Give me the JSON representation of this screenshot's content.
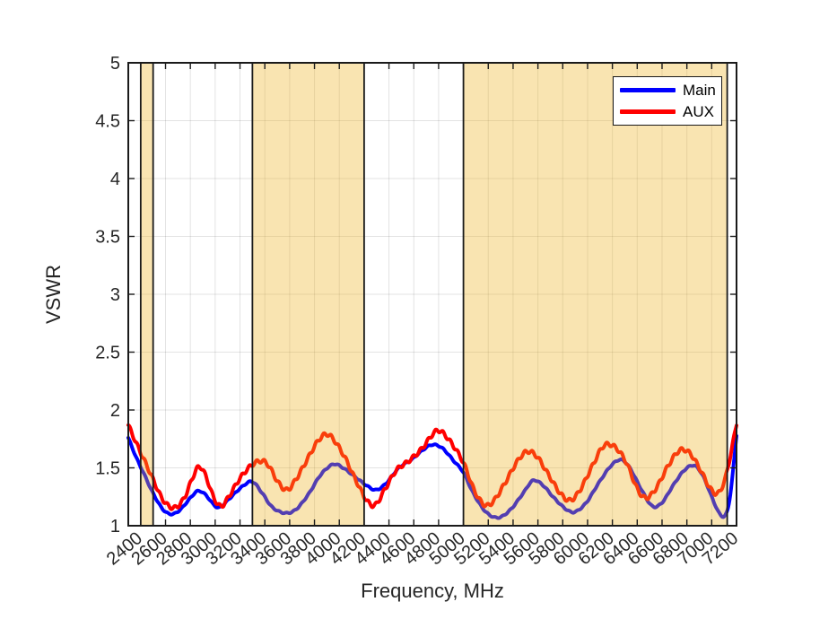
{
  "figure": {
    "background": "#ffffff"
  },
  "chart_data": {
    "type": "line",
    "title": "",
    "xlabel": "Frequency, MHz",
    "ylabel": "VSWR",
    "xlim": [
      2300,
      7200
    ],
    "ylim": [
      1,
      5
    ],
    "grid": true,
    "grid_color": "rgba(38,38,38,0.13)",
    "axis_color": "#1a1a1a",
    "tick_label_color": "#262626",
    "x_ticks": [
      2400,
      2600,
      2800,
      3000,
      3200,
      3400,
      3600,
      3800,
      4000,
      4200,
      4400,
      4600,
      4800,
      5000,
      5200,
      5400,
      5600,
      5800,
      6000,
      6200,
      6400,
      6600,
      6800,
      7000,
      7200
    ],
    "x_tick_labels": [
      "2400",
      "2600",
      "2800",
      "3000",
      "3200",
      "3400",
      "3600",
      "3800",
      "4000",
      "4200",
      "4400",
      "4600",
      "4800",
      "5000",
      "5200",
      "5400",
      "5600",
      "5800",
      "6000",
      "6200",
      "6400",
      "6600",
      "6800",
      "7000",
      "7200"
    ],
    "y_ticks": [
      1,
      1.5,
      2,
      2.5,
      3,
      3.5,
      4,
      4.5,
      5
    ],
    "y_tick_labels": [
      "1",
      "1.5",
      "2",
      "2.5",
      "3",
      "3.5",
      "4",
      "4.5",
      "5"
    ],
    "bands": {
      "color": "#EDB120",
      "alpha": 0.35,
      "edge_color": "#1a1a1a",
      "ranges": [
        [
          2400,
          2500
        ],
        [
          3300,
          4200
        ],
        [
          5000,
          7125
        ]
      ]
    },
    "legend": {
      "position": "top-right",
      "entries": [
        "Main",
        "AUX"
      ]
    },
    "series": [
      {
        "name": "Main",
        "color": "#0000FF",
        "line_width": 4,
        "ripple_amp": 0.005,
        "ripple_period": 60,
        "points": [
          [
            2300,
            1.76
          ],
          [
            2360,
            1.6
          ],
          [
            2430,
            1.44
          ],
          [
            2500,
            1.28
          ],
          [
            2580,
            1.14
          ],
          [
            2650,
            1.1
          ],
          [
            2720,
            1.14
          ],
          [
            2800,
            1.24
          ],
          [
            2860,
            1.3
          ],
          [
            2920,
            1.27
          ],
          [
            2990,
            1.18
          ],
          [
            3040,
            1.16
          ],
          [
            3120,
            1.24
          ],
          [
            3220,
            1.34
          ],
          [
            3300,
            1.38
          ],
          [
            3380,
            1.28
          ],
          [
            3460,
            1.16
          ],
          [
            3560,
            1.11
          ],
          [
            3650,
            1.14
          ],
          [
            3750,
            1.27
          ],
          [
            3850,
            1.44
          ],
          [
            3950,
            1.53
          ],
          [
            4030,
            1.5
          ],
          [
            4130,
            1.42
          ],
          [
            4230,
            1.34
          ],
          [
            4300,
            1.31
          ],
          [
            4380,
            1.37
          ],
          [
            4480,
            1.5
          ],
          [
            4580,
            1.57
          ],
          [
            4680,
            1.66
          ],
          [
            4750,
            1.7
          ],
          [
            4830,
            1.67
          ],
          [
            4930,
            1.55
          ],
          [
            5000,
            1.46
          ],
          [
            5080,
            1.28
          ],
          [
            5180,
            1.12
          ],
          [
            5280,
            1.07
          ],
          [
            5380,
            1.14
          ],
          [
            5480,
            1.28
          ],
          [
            5560,
            1.39
          ],
          [
            5640,
            1.35
          ],
          [
            5730,
            1.24
          ],
          [
            5830,
            1.14
          ],
          [
            5900,
            1.12
          ],
          [
            5990,
            1.2
          ],
          [
            6090,
            1.37
          ],
          [
            6190,
            1.52
          ],
          [
            6270,
            1.57
          ],
          [
            6340,
            1.5
          ],
          [
            6430,
            1.32
          ],
          [
            6520,
            1.17
          ],
          [
            6600,
            1.2
          ],
          [
            6690,
            1.35
          ],
          [
            6780,
            1.48
          ],
          [
            6860,
            1.52
          ],
          [
            6930,
            1.43
          ],
          [
            7000,
            1.25
          ],
          [
            7060,
            1.11
          ],
          [
            7110,
            1.09
          ],
          [
            7150,
            1.27
          ],
          [
            7200,
            1.78
          ]
        ]
      },
      {
        "name": "AUX",
        "color": "#FF0000",
        "line_width": 4,
        "ripple_amp": 0.016,
        "ripple_period": 60,
        "points": [
          [
            2300,
            1.87
          ],
          [
            2370,
            1.7
          ],
          [
            2440,
            1.54
          ],
          [
            2500,
            1.4
          ],
          [
            2570,
            1.24
          ],
          [
            2640,
            1.16
          ],
          [
            2700,
            1.17
          ],
          [
            2760,
            1.26
          ],
          [
            2820,
            1.42
          ],
          [
            2870,
            1.51
          ],
          [
            2920,
            1.44
          ],
          [
            2990,
            1.24
          ],
          [
            3050,
            1.17
          ],
          [
            3120,
            1.27
          ],
          [
            3200,
            1.41
          ],
          [
            3290,
            1.52
          ],
          [
            3370,
            1.56
          ],
          [
            3430,
            1.52
          ],
          [
            3510,
            1.37
          ],
          [
            3580,
            1.31
          ],
          [
            3650,
            1.4
          ],
          [
            3730,
            1.55
          ],
          [
            3820,
            1.72
          ],
          [
            3890,
            1.79
          ],
          [
            3950,
            1.75
          ],
          [
            4040,
            1.6
          ],
          [
            4130,
            1.4
          ],
          [
            4220,
            1.22
          ],
          [
            4290,
            1.18
          ],
          [
            4370,
            1.32
          ],
          [
            4460,
            1.48
          ],
          [
            4560,
            1.56
          ],
          [
            4660,
            1.66
          ],
          [
            4760,
            1.8
          ],
          [
            4810,
            1.82
          ],
          [
            4870,
            1.76
          ],
          [
            4950,
            1.64
          ],
          [
            5010,
            1.52
          ],
          [
            5090,
            1.3
          ],
          [
            5170,
            1.18
          ],
          [
            5240,
            1.21
          ],
          [
            5330,
            1.36
          ],
          [
            5430,
            1.55
          ],
          [
            5510,
            1.64
          ],
          [
            5590,
            1.6
          ],
          [
            5680,
            1.45
          ],
          [
            5780,
            1.28
          ],
          [
            5860,
            1.22
          ],
          [
            5940,
            1.31
          ],
          [
            6040,
            1.52
          ],
          [
            6130,
            1.69
          ],
          [
            6220,
            1.68
          ],
          [
            6310,
            1.55
          ],
          [
            6400,
            1.32
          ],
          [
            6470,
            1.24
          ],
          [
            6550,
            1.32
          ],
          [
            6650,
            1.52
          ],
          [
            6740,
            1.65
          ],
          [
            6820,
            1.63
          ],
          [
            6900,
            1.5
          ],
          [
            6990,
            1.32
          ],
          [
            7050,
            1.28
          ],
          [
            7100,
            1.38
          ],
          [
            7140,
            1.55
          ],
          [
            7200,
            1.88
          ]
        ]
      }
    ]
  }
}
